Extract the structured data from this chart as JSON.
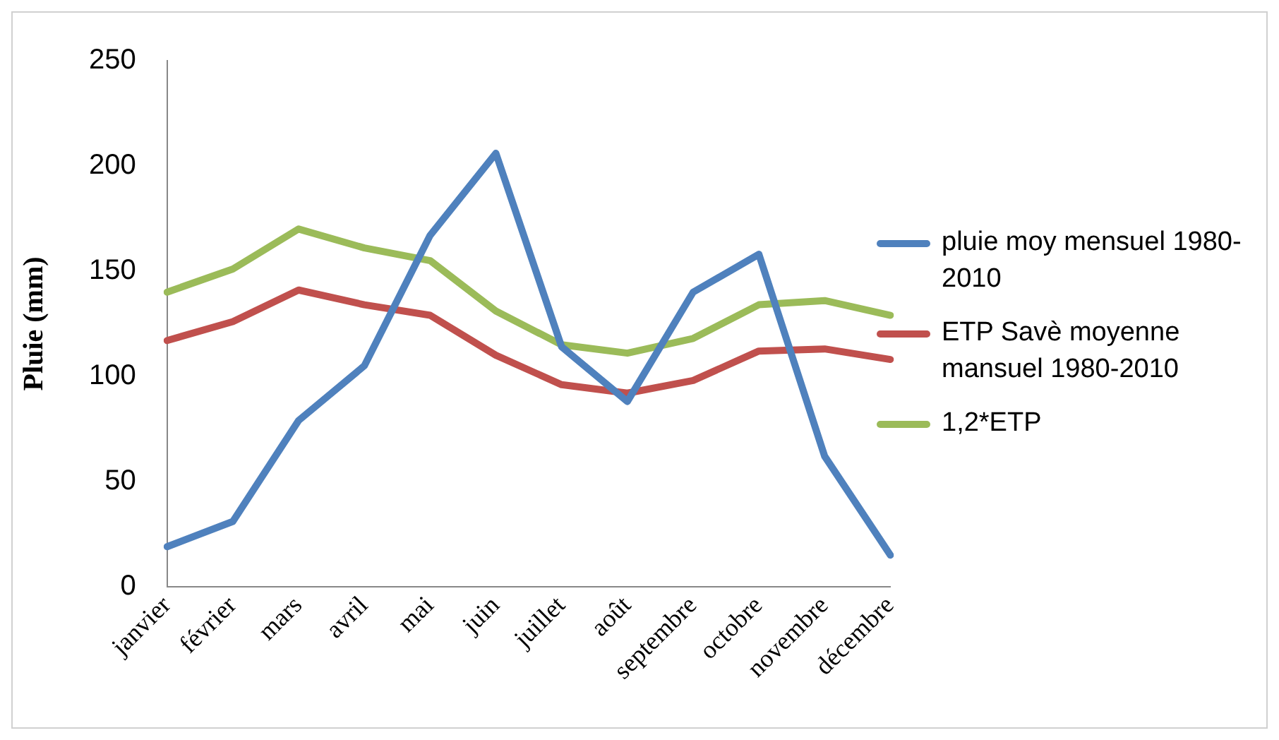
{
  "chart_data": {
    "type": "line",
    "ylabel": "Pluie (mm)",
    "categories": [
      "janvier",
      "février",
      "mars",
      "avril",
      "mai",
      "juin",
      "juillet",
      "août",
      "septembre",
      "octobre",
      "novembre",
      "décembre"
    ],
    "series": [
      {
        "name": "pluie moy mensuel 1980-2010",
        "color": "#4f81bd",
        "values": [
          19,
          31,
          79,
          105,
          167,
          206,
          114,
          88,
          140,
          158,
          62,
          15
        ]
      },
      {
        "name": "ETP Savè moyenne mansuel 1980-2010",
        "color": "#c0504d",
        "values": [
          117,
          126,
          141,
          134,
          129,
          110,
          96,
          92,
          98,
          112,
          113,
          108
        ]
      },
      {
        "name": "1,2*ETP",
        "color": "#9bbb59",
        "values": [
          140,
          151,
          170,
          161,
          155,
          131,
          115,
          111,
          118,
          134,
          136,
          129
        ]
      }
    ],
    "ylim": [
      0,
      250
    ],
    "yticks": [
      0,
      50,
      100,
      150,
      200,
      250
    ],
    "grid": false,
    "legend": "right",
    "marker": "none",
    "line_style": "solid"
  }
}
